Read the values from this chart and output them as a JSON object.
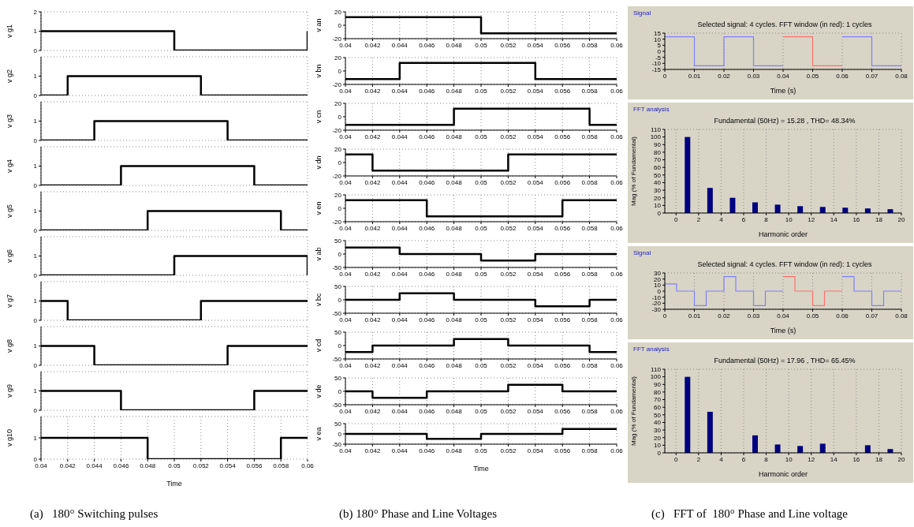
{
  "chart_data": [
    {
      "type": "step",
      "ylabel": "v g1",
      "xlim": [
        0.04,
        0.06
      ],
      "xticks": [
        0.04,
        0.042,
        0.044,
        0.046,
        0.048,
        0.05,
        0.052,
        0.054,
        0.056,
        0.058,
        0.06
      ],
      "ylim": [
        0,
        2
      ],
      "yticks": [
        0,
        1,
        2
      ],
      "grid": true,
      "tick_labels": "y",
      "series": [
        {
          "color": "#000000",
          "x": [
            0.04,
            0.05,
            0.06
          ],
          "values": [
            1,
            0,
            1
          ]
        }
      ]
    },
    {
      "type": "step",
      "ylabel": "v g2",
      "xlim": [
        0.04,
        0.06
      ],
      "xticks": [
        0.04,
        0.042,
        0.044,
        0.046,
        0.048,
        0.05,
        0.052,
        0.054,
        0.056,
        0.058,
        0.06
      ],
      "ylim": [
        0,
        2
      ],
      "yticks": [
        0,
        1
      ],
      "grid": true,
      "tick_labels": "y",
      "series": [
        {
          "color": "#000000",
          "x": [
            0.04,
            0.042,
            0.052,
            0.06
          ],
          "values": [
            0,
            1,
            0,
            0
          ]
        }
      ]
    },
    {
      "type": "step",
      "ylabel": "v g3",
      "xlim": [
        0.04,
        0.06
      ],
      "xticks": [
        0.04,
        0.042,
        0.044,
        0.046,
        0.048,
        0.05,
        0.052,
        0.054,
        0.056,
        0.058,
        0.06
      ],
      "ylim": [
        0,
        2
      ],
      "yticks": [
        0,
        1
      ],
      "grid": true,
      "tick_labels": "y",
      "series": [
        {
          "color": "#000000",
          "x": [
            0.04,
            0.044,
            0.054,
            0.06
          ],
          "values": [
            0,
            1,
            0,
            0
          ]
        }
      ]
    },
    {
      "type": "step",
      "ylabel": "v g4",
      "xlim": [
        0.04,
        0.06
      ],
      "xticks": [
        0.04,
        0.042,
        0.044,
        0.046,
        0.048,
        0.05,
        0.052,
        0.054,
        0.056,
        0.058,
        0.06
      ],
      "ylim": [
        0,
        2
      ],
      "yticks": [
        0,
        1
      ],
      "grid": true,
      "tick_labels": "y",
      "series": [
        {
          "color": "#000000",
          "x": [
            0.04,
            0.046,
            0.056,
            0.06
          ],
          "values": [
            0,
            1,
            0,
            0
          ]
        }
      ]
    },
    {
      "type": "step",
      "ylabel": "v g5",
      "xlim": [
        0.04,
        0.06
      ],
      "xticks": [
        0.04,
        0.042,
        0.044,
        0.046,
        0.048,
        0.05,
        0.052,
        0.054,
        0.056,
        0.058,
        0.06
      ],
      "ylim": [
        0,
        2
      ],
      "yticks": [
        0,
        1
      ],
      "grid": true,
      "tick_labels": "y",
      "series": [
        {
          "color": "#000000",
          "x": [
            0.04,
            0.048,
            0.058,
            0.06
          ],
          "values": [
            0,
            1,
            0,
            0
          ]
        }
      ]
    },
    {
      "type": "step",
      "ylabel": "v g6",
      "xlim": [
        0.04,
        0.06
      ],
      "xticks": [
        0.04,
        0.042,
        0.044,
        0.046,
        0.048,
        0.05,
        0.052,
        0.054,
        0.056,
        0.058,
        0.06
      ],
      "ylim": [
        0,
        2
      ],
      "yticks": [
        0,
        1
      ],
      "grid": true,
      "tick_labels": "y",
      "series": [
        {
          "color": "#000000",
          "x": [
            0.04,
            0.05,
            0.06
          ],
          "values": [
            0,
            1,
            0
          ]
        }
      ]
    },
    {
      "type": "step",
      "ylabel": "v g7",
      "xlim": [
        0.04,
        0.06
      ],
      "xticks": [
        0.04,
        0.042,
        0.044,
        0.046,
        0.048,
        0.05,
        0.052,
        0.054,
        0.056,
        0.058,
        0.06
      ],
      "ylim": [
        0,
        2
      ],
      "yticks": [
        0,
        1
      ],
      "grid": true,
      "tick_labels": "y",
      "series": [
        {
          "color": "#000000",
          "x": [
            0.04,
            0.042,
            0.052,
            0.06
          ],
          "values": [
            1,
            0,
            1,
            1
          ]
        }
      ]
    },
    {
      "type": "step",
      "ylabel": "v g8",
      "xlim": [
        0.04,
        0.06
      ],
      "xticks": [
        0.04,
        0.042,
        0.044,
        0.046,
        0.048,
        0.05,
        0.052,
        0.054,
        0.056,
        0.058,
        0.06
      ],
      "ylim": [
        0,
        2
      ],
      "yticks": [
        0,
        1
      ],
      "grid": true,
      "tick_labels": "y",
      "series": [
        {
          "color": "#000000",
          "x": [
            0.04,
            0.044,
            0.054,
            0.06
          ],
          "values": [
            1,
            0,
            1,
            1
          ]
        }
      ]
    },
    {
      "type": "step",
      "ylabel": "v g9",
      "xlim": [
        0.04,
        0.06
      ],
      "xticks": [
        0.04,
        0.042,
        0.044,
        0.046,
        0.048,
        0.05,
        0.052,
        0.054,
        0.056,
        0.058,
        0.06
      ],
      "ylim": [
        0,
        2
      ],
      "yticks": [
        0,
        1
      ],
      "grid": true,
      "tick_labels": "y",
      "series": [
        {
          "color": "#000000",
          "x": [
            0.04,
            0.046,
            0.056,
            0.06
          ],
          "values": [
            1,
            0,
            1,
            1
          ]
        }
      ]
    },
    {
      "type": "step",
      "ylabel": "v g10",
      "xlabel": "Time",
      "xlim": [
        0.04,
        0.06
      ],
      "xticks": [
        0.04,
        0.042,
        0.044,
        0.046,
        0.048,
        0.05,
        0.052,
        0.054,
        0.056,
        0.058,
        0.06
      ],
      "ylim": [
        0,
        2
      ],
      "yticks": [
        0,
        1
      ],
      "grid": true,
      "annotations": [
        "(a)   180° Switching pulses"
      ],
      "series": [
        {
          "color": "#000000",
          "x": [
            0.04,
            0.048,
            0.058,
            0.06
          ],
          "values": [
            1,
            0,
            1,
            1
          ]
        }
      ]
    },
    {
      "type": "step",
      "ylabel": "v an",
      "xlim": [
        0.04,
        0.06
      ],
      "xticks": [
        0.04,
        0.042,
        0.044,
        0.046,
        0.048,
        0.05,
        0.052,
        0.054,
        0.056,
        0.058,
        0.06
      ],
      "ylim": [
        -20,
        20
      ],
      "yticks": [
        -20,
        0,
        20
      ],
      "grid": true,
      "series": [
        {
          "color": "#000000",
          "x": [
            0.04,
            0.05,
            0.06
          ],
          "values": [
            12,
            -12,
            -12
          ]
        }
      ]
    },
    {
      "type": "step",
      "ylabel": "v bn",
      "xlim": [
        0.04,
        0.06
      ],
      "xticks": [
        0.04,
        0.042,
        0.044,
        0.046,
        0.048,
        0.05,
        0.052,
        0.054,
        0.056,
        0.058,
        0.06
      ],
      "ylim": [
        -20,
        20
      ],
      "yticks": [
        -20,
        0,
        20
      ],
      "grid": true,
      "series": [
        {
          "color": "#000000",
          "x": [
            0.04,
            0.044,
            0.054,
            0.06
          ],
          "values": [
            -12,
            12,
            -12,
            -12
          ]
        }
      ]
    },
    {
      "type": "step",
      "ylabel": "v cn",
      "xlim": [
        0.04,
        0.06
      ],
      "xticks": [
        0.04,
        0.042,
        0.044,
        0.046,
        0.048,
        0.05,
        0.052,
        0.054,
        0.056,
        0.058,
        0.06
      ],
      "ylim": [
        -20,
        20
      ],
      "yticks": [
        -20,
        0,
        20
      ],
      "grid": true,
      "series": [
        {
          "color": "#000000",
          "x": [
            0.04,
            0.048,
            0.058,
            0.06
          ],
          "values": [
            -12,
            12,
            -12,
            -12
          ]
        }
      ]
    },
    {
      "type": "step",
      "ylabel": "v dn",
      "xlim": [
        0.04,
        0.06
      ],
      "xticks": [
        0.04,
        0.042,
        0.044,
        0.046,
        0.048,
        0.05,
        0.052,
        0.054,
        0.056,
        0.058,
        0.06
      ],
      "ylim": [
        -20,
        20
      ],
      "yticks": [
        -20,
        0,
        20
      ],
      "grid": true,
      "series": [
        {
          "color": "#000000",
          "x": [
            0.04,
            0.042,
            0.052,
            0.06
          ],
          "values": [
            12,
            -12,
            12,
            12
          ]
        }
      ]
    },
    {
      "type": "step",
      "ylabel": "v en",
      "xlim": [
        0.04,
        0.06
      ],
      "xticks": [
        0.04,
        0.042,
        0.044,
        0.046,
        0.048,
        0.05,
        0.052,
        0.054,
        0.056,
        0.058,
        0.06
      ],
      "ylim": [
        -20,
        20
      ],
      "yticks": [
        -20,
        0,
        20
      ],
      "grid": true,
      "series": [
        {
          "color": "#000000",
          "x": [
            0.04,
            0.046,
            0.056,
            0.06
          ],
          "values": [
            12,
            -12,
            12,
            12
          ]
        }
      ]
    },
    {
      "type": "step",
      "ylabel": "v ab",
      "xlim": [
        0.04,
        0.06
      ],
      "xticks": [
        0.04,
        0.042,
        0.044,
        0.046,
        0.048,
        0.05,
        0.052,
        0.054,
        0.056,
        0.058,
        0.06
      ],
      "ylim": [
        -50,
        50
      ],
      "yticks": [
        -50,
        0,
        50
      ],
      "grid": true,
      "series": [
        {
          "color": "#000000",
          "x": [
            0.04,
            0.044,
            0.05,
            0.054,
            0.06
          ],
          "values": [
            24,
            0,
            -24,
            0,
            0
          ]
        }
      ]
    },
    {
      "type": "step",
      "ylabel": "v bc",
      "xlim": [
        0.04,
        0.06
      ],
      "xticks": [
        0.04,
        0.042,
        0.044,
        0.046,
        0.048,
        0.05,
        0.052,
        0.054,
        0.056,
        0.058,
        0.06
      ],
      "ylim": [
        -50,
        50
      ],
      "yticks": [
        -50,
        0,
        50
      ],
      "grid": true,
      "series": [
        {
          "color": "#000000",
          "x": [
            0.04,
            0.044,
            0.048,
            0.054,
            0.058,
            0.06
          ],
          "values": [
            0,
            24,
            0,
            -24,
            0,
            0
          ]
        }
      ]
    },
    {
      "type": "step",
      "ylabel": "v cd",
      "xlim": [
        0.04,
        0.06
      ],
      "xticks": [
        0.04,
        0.042,
        0.044,
        0.046,
        0.048,
        0.05,
        0.052,
        0.054,
        0.056,
        0.058,
        0.06
      ],
      "ylim": [
        -50,
        50
      ],
      "yticks": [
        -50,
        0,
        50
      ],
      "grid": true,
      "series": [
        {
          "color": "#000000",
          "x": [
            0.04,
            0.042,
            0.048,
            0.052,
            0.058,
            0.06
          ],
          "values": [
            -24,
            0,
            24,
            0,
            -24,
            -24
          ]
        }
      ]
    },
    {
      "type": "step",
      "ylabel": "v de",
      "xlim": [
        0.04,
        0.06
      ],
      "xticks": [
        0.04,
        0.042,
        0.044,
        0.046,
        0.048,
        0.05,
        0.052,
        0.054,
        0.056,
        0.058,
        0.06
      ],
      "ylim": [
        -50,
        50
      ],
      "yticks": [
        -50,
        0,
        50
      ],
      "grid": true,
      "series": [
        {
          "color": "#000000",
          "x": [
            0.04,
            0.042,
            0.046,
            0.052,
            0.056,
            0.06
          ],
          "values": [
            0,
            -24,
            0,
            24,
            0,
            0
          ]
        }
      ]
    },
    {
      "type": "step",
      "ylabel": "v ea",
      "xlabel": "Time",
      "xlim": [
        0.04,
        0.06
      ],
      "xticks": [
        0.04,
        0.042,
        0.044,
        0.046,
        0.048,
        0.05,
        0.052,
        0.054,
        0.056,
        0.058,
        0.06
      ],
      "ylim": [
        -50,
        50
      ],
      "yticks": [
        -50,
        0,
        50
      ],
      "grid": true,
      "annotations": [
        "(b) 180° Phase and Line Voltages"
      ],
      "series": [
        {
          "color": "#000000",
          "x": [
            0.04,
            0.046,
            0.05,
            0.056,
            0.06
          ],
          "values": [
            0,
            -24,
            0,
            24,
            24
          ]
        }
      ]
    },
    {
      "type": "step",
      "subtitle": "Signal",
      "title": "Selected signal: 4 cycles. FFT window (in red): 1 cycles",
      "xlabel": "Time (s)",
      "xlim": [
        0,
        0.08
      ],
      "xticks": [
        0,
        0.01,
        0.02,
        0.03,
        0.04,
        0.05,
        0.06,
        0.07,
        0.08
      ],
      "ylim": [
        -15,
        15
      ],
      "yticks": [
        -15,
        -10,
        -5,
        0,
        5,
        10,
        15
      ],
      "grid": true,
      "series": [
        {
          "color": "#7f7fff",
          "x": [
            0,
            0.01,
            0.02,
            0.03,
            0.04
          ],
          "values": [
            12,
            -12,
            12,
            -12,
            -12
          ]
        },
        {
          "color": "#ff6f6f",
          "x": [
            0.04,
            0.05,
            0.06
          ],
          "values": [
            12,
            -12,
            -12
          ]
        },
        {
          "color": "#7f7fff",
          "x": [
            0.06,
            0.07,
            0.08
          ],
          "values": [
            12,
            -12,
            -12
          ]
        }
      ]
    },
    {
      "type": "bar",
      "subtitle": "FFT analysis",
      "title": "Fundamental (50Hz) = 15.28 , THD= 48.34%",
      "xlabel": "Harmonic order",
      "ylabel": "Mag (% of Fundamental)",
      "xlim": [
        -1,
        20
      ],
      "xticks": [
        0,
        2,
        4,
        6,
        8,
        10,
        12,
        14,
        16,
        18,
        20
      ],
      "ylim": [
        0,
        110
      ],
      "yticks": [
        0,
        10,
        20,
        30,
        40,
        50,
        60,
        70,
        80,
        90,
        100,
        110
      ],
      "grid": true,
      "series": [
        {
          "color": "#000080",
          "x": [
            1,
            3,
            5,
            7,
            9,
            11,
            13,
            15,
            17,
            19
          ],
          "values": [
            100,
            33,
            20,
            14,
            11,
            9,
            8,
            7,
            6,
            5
          ]
        }
      ]
    },
    {
      "type": "step",
      "subtitle": "Signal",
      "title": "Selected signal: 4 cycles. FFT window (in red): 1 cycles",
      "xlabel": "Time (s)",
      "xlim": [
        0,
        0.08
      ],
      "xticks": [
        0,
        0.01,
        0.02,
        0.03,
        0.04,
        0.05,
        0.06,
        0.07,
        0.08
      ],
      "ylim": [
        -30,
        30
      ],
      "yticks": [
        -30,
        -20,
        -10,
        0,
        10,
        20,
        30
      ],
      "grid": true,
      "series": [
        {
          "color": "#7f7fff",
          "x": [
            0,
            0.004,
            0.01,
            0.014,
            0.02,
            0.024,
            0.03,
            0.034,
            0.04
          ],
          "values": [
            12,
            0,
            -24,
            0,
            24,
            0,
            -24,
            0,
            0
          ]
        },
        {
          "color": "#ff6f6f",
          "x": [
            0.04,
            0.044,
            0.05,
            0.054,
            0.06
          ],
          "values": [
            24,
            0,
            -24,
            0,
            0
          ]
        },
        {
          "color": "#7f7fff",
          "x": [
            0.06,
            0.064,
            0.07,
            0.074,
            0.08
          ],
          "values": [
            24,
            0,
            -24,
            0,
            0
          ]
        }
      ]
    },
    {
      "type": "bar",
      "subtitle": "FFT analysis",
      "title": "Fundamental (50Hz) = 17.96 , THD= 65.45%",
      "xlabel": "Harmonic order",
      "ylabel": "Mag (% of Fundamental)",
      "xlim": [
        -1,
        20
      ],
      "xticks": [
        0,
        2,
        4,
        6,
        8,
        10,
        12,
        14,
        16,
        18,
        20
      ],
      "ylim": [
        0,
        110
      ],
      "yticks": [
        0,
        10,
        20,
        30,
        40,
        50,
        60,
        70,
        80,
        90,
        100,
        110
      ],
      "grid": true,
      "annotations": [
        "(c)   FFT of  180° Phase and Line voltage"
      ],
      "series": [
        {
          "color": "#000080",
          "x": [
            1,
            3,
            7,
            9,
            11,
            13,
            17,
            19
          ],
          "values": [
            100,
            54,
            23,
            11,
            9,
            12,
            10,
            5
          ]
        }
      ]
    }
  ]
}
